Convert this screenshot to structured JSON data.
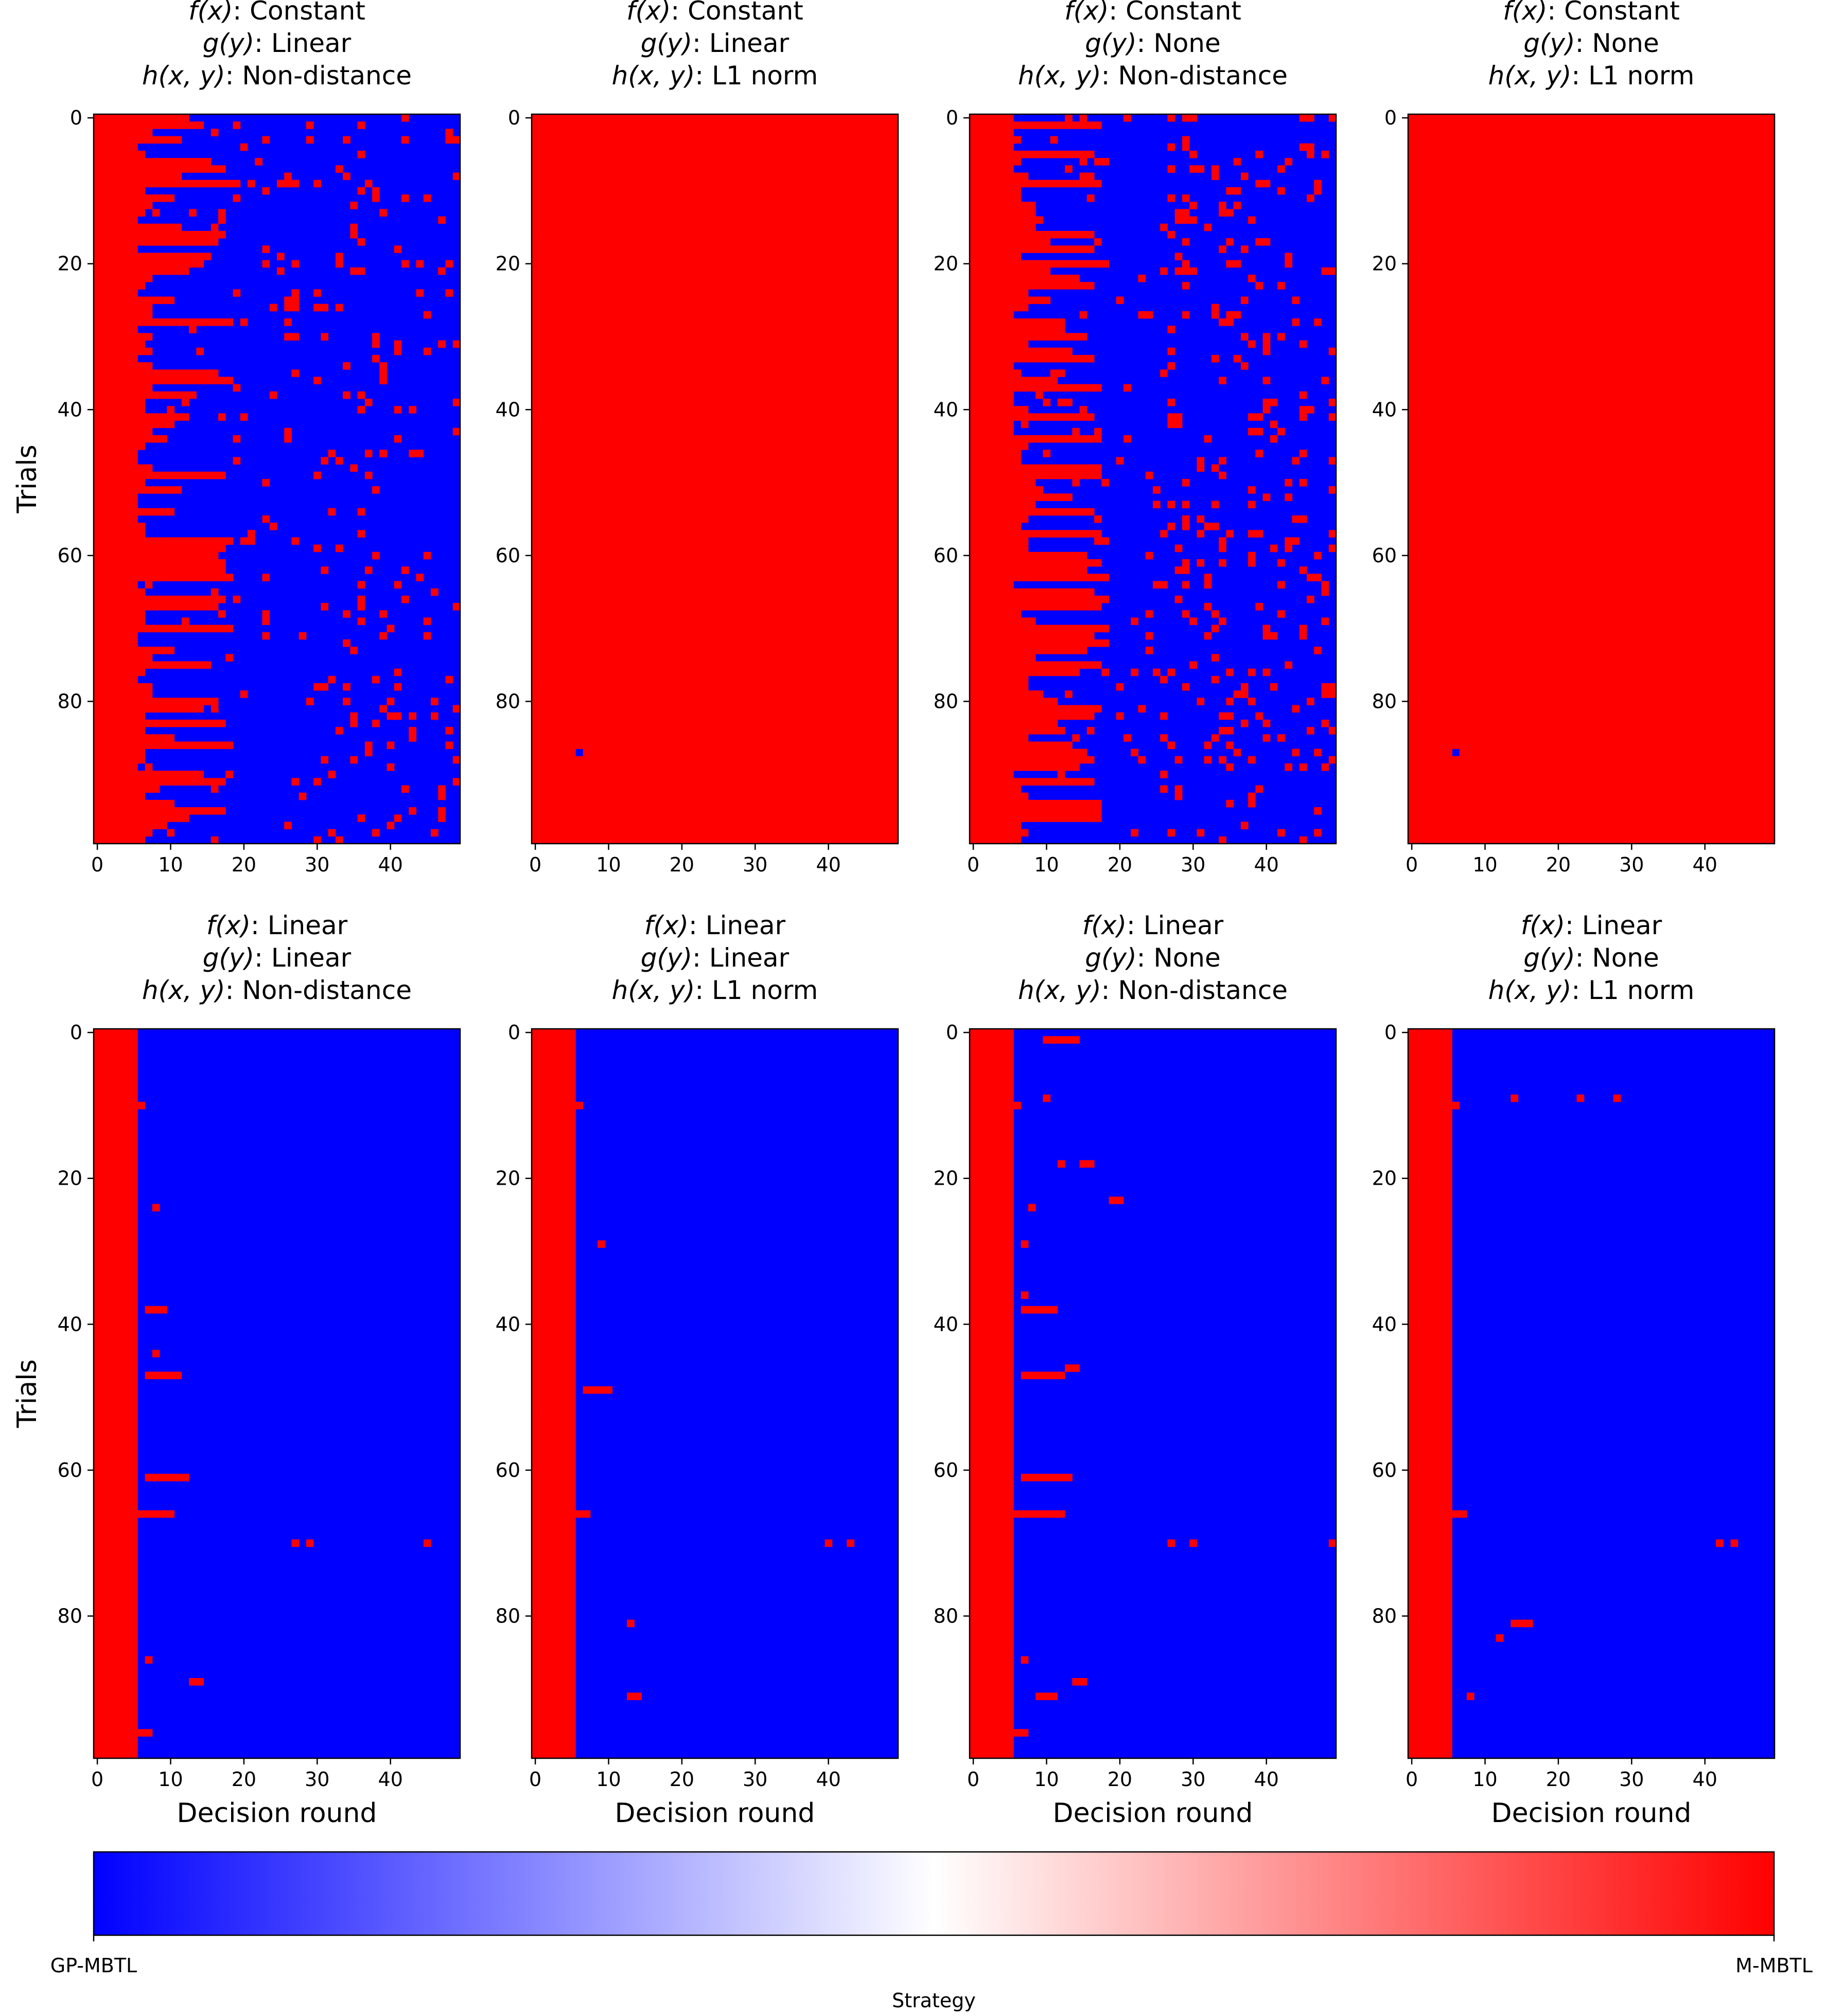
{
  "chart_data": {
    "type": "heatmap",
    "shared": {
      "x_ticks": [
        0,
        10,
        20,
        30,
        40
      ],
      "y_ticks": [
        0,
        20,
        40,
        60,
        80
      ],
      "n_cols": 50,
      "n_rows": 100,
      "xlabel": "Decision round",
      "ylabel": "Trials",
      "title_prefixes": [
        "f(x): ",
        "g(y): ",
        "h(x, y): "
      ],
      "colors": {
        "gp_mbtl": "#0000ff",
        "m_mbtl": "#ff0000",
        "mid": "#ffffff"
      }
    },
    "panels": [
      {
        "title_lines": [
          "Constant",
          "Linear",
          "Non-distance"
        ],
        "pattern": "const_nondist",
        "seed": 11,
        "outlier_prob": 0.055,
        "description": "Per trial: M-MBTL for first 6-18 rounds, then mostly GP-MBTL with scattered M-MBTL cells"
      },
      {
        "title_lines": [
          "Constant",
          "Linear",
          "L1 norm"
        ],
        "pattern": "all_m",
        "blue_cells": [
          [
            6,
            87
          ]
        ],
        "description": "All M-MBTL except one GP-MBTL cell"
      },
      {
        "title_lines": [
          "Constant",
          "None",
          "Non-distance"
        ],
        "pattern": "const_nondist",
        "seed": 29,
        "outlier_prob": 0.085,
        "description": "Per trial: M-MBTL for first 6-18 rounds, then mostly GP-MBTL with scattered M-MBTL cells"
      },
      {
        "title_lines": [
          "Constant",
          "None",
          "L1 norm"
        ],
        "pattern": "all_m",
        "blue_cells": [
          [
            6,
            87
          ]
        ],
        "description": "All M-MBTL except one GP-MBTL cell"
      },
      {
        "title_lines": [
          "Linear",
          "Linear",
          "Non-distance"
        ],
        "pattern": "linear",
        "red_cols": 6,
        "red_cells": [
          [
            6,
            10
          ],
          [
            8,
            24
          ],
          [
            7,
            38
          ],
          [
            8,
            38
          ],
          [
            9,
            38
          ],
          [
            8,
            44
          ],
          [
            7,
            47
          ],
          [
            8,
            47
          ],
          [
            9,
            47
          ],
          [
            10,
            47
          ],
          [
            11,
            47
          ],
          [
            7,
            61
          ],
          [
            8,
            61
          ],
          [
            9,
            61
          ],
          [
            10,
            61
          ],
          [
            11,
            61
          ],
          [
            12,
            61
          ],
          [
            6,
            66
          ],
          [
            7,
            66
          ],
          [
            8,
            66
          ],
          [
            9,
            66
          ],
          [
            10,
            66
          ],
          [
            27,
            70
          ],
          [
            29,
            70
          ],
          [
            45,
            70
          ],
          [
            7,
            86
          ],
          [
            13,
            89
          ],
          [
            14,
            89
          ],
          [
            6,
            96
          ],
          [
            7,
            96
          ]
        ]
      },
      {
        "title_lines": [
          "Linear",
          "Linear",
          "L1 norm"
        ],
        "pattern": "linear",
        "red_cols": 6,
        "red_cells": [
          [
            6,
            10
          ],
          [
            9,
            29
          ],
          [
            7,
            49
          ],
          [
            8,
            49
          ],
          [
            9,
            49
          ],
          [
            10,
            49
          ],
          [
            6,
            66
          ],
          [
            7,
            66
          ],
          [
            40,
            70
          ],
          [
            43,
            70
          ],
          [
            13,
            81
          ],
          [
            13,
            91
          ],
          [
            14,
            91
          ]
        ]
      },
      {
        "title_lines": [
          "Linear",
          "None",
          "Non-distance"
        ],
        "pattern": "linear",
        "red_cols": 6,
        "red_cells": [
          [
            10,
            1
          ],
          [
            11,
            1
          ],
          [
            12,
            1
          ],
          [
            13,
            1
          ],
          [
            14,
            1
          ],
          [
            6,
            10
          ],
          [
            10,
            9
          ],
          [
            12,
            18
          ],
          [
            15,
            18
          ],
          [
            16,
            18
          ],
          [
            19,
            23
          ],
          [
            20,
            23
          ],
          [
            8,
            24
          ],
          [
            7,
            29
          ],
          [
            7,
            36
          ],
          [
            7,
            38
          ],
          [
            8,
            38
          ],
          [
            9,
            38
          ],
          [
            10,
            38
          ],
          [
            11,
            38
          ],
          [
            13,
            46
          ],
          [
            14,
            46
          ],
          [
            7,
            47
          ],
          [
            8,
            47
          ],
          [
            9,
            47
          ],
          [
            10,
            47
          ],
          [
            11,
            47
          ],
          [
            12,
            47
          ],
          [
            7,
            61
          ],
          [
            8,
            61
          ],
          [
            9,
            61
          ],
          [
            10,
            61
          ],
          [
            11,
            61
          ],
          [
            12,
            61
          ],
          [
            13,
            61
          ],
          [
            6,
            66
          ],
          [
            7,
            66
          ],
          [
            8,
            66
          ],
          [
            9,
            66
          ],
          [
            10,
            66
          ],
          [
            11,
            66
          ],
          [
            12,
            66
          ],
          [
            27,
            70
          ],
          [
            30,
            70
          ],
          [
            49,
            70
          ],
          [
            7,
            86
          ],
          [
            14,
            89
          ],
          [
            15,
            89
          ],
          [
            9,
            91
          ],
          [
            10,
            91
          ],
          [
            11,
            91
          ],
          [
            6,
            96
          ],
          [
            7,
            96
          ]
        ]
      },
      {
        "title_lines": [
          "Linear",
          "None",
          "L1 norm"
        ],
        "pattern": "linear",
        "red_cols": 6,
        "red_cells": [
          [
            6,
            10
          ],
          [
            14,
            9
          ],
          [
            23,
            9
          ],
          [
            28,
            9
          ],
          [
            6,
            66
          ],
          [
            7,
            66
          ],
          [
            42,
            70
          ],
          [
            44,
            70
          ],
          [
            14,
            81
          ],
          [
            15,
            81
          ],
          [
            16,
            81
          ],
          [
            12,
            83
          ],
          [
            8,
            91
          ]
        ]
      }
    ],
    "colorbar": {
      "min_label": "GP-MBTL",
      "max_label": "M-MBTL",
      "label": "Strategy",
      "colors": [
        "#0000ff",
        "#ffffff",
        "#ff0000"
      ]
    }
  }
}
